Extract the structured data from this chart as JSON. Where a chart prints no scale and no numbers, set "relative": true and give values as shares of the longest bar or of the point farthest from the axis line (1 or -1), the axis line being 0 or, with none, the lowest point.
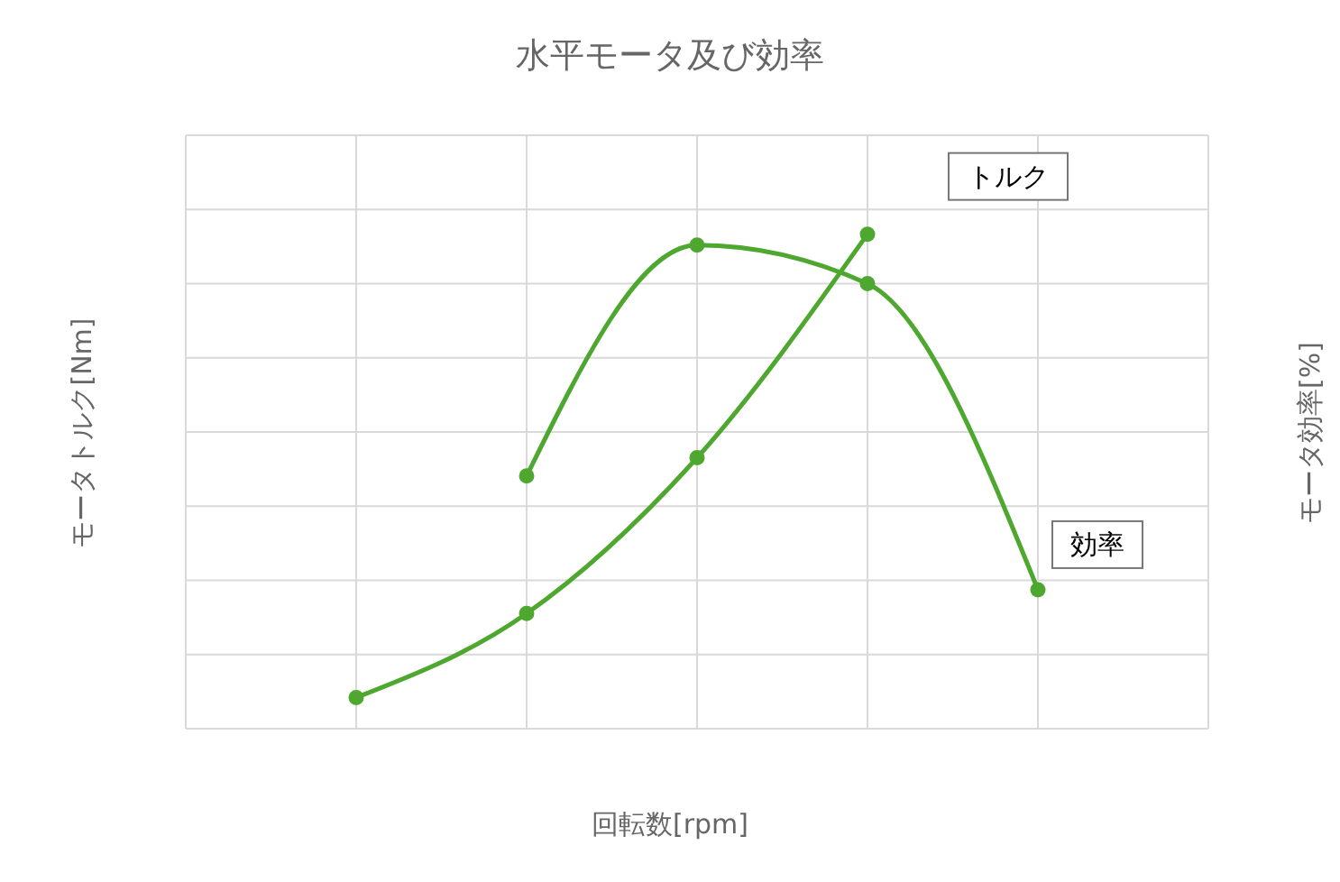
{
  "chart_data": {
    "type": "line",
    "title": "水平モータ及び効率",
    "xlabel": "回転数[rpm]",
    "ylabel": "モータトルク[Nm]",
    "y2label": "モータ効率[%]",
    "categories": [
      null,
      null,
      null,
      null,
      null,
      null,
      null
    ],
    "relative": true,
    "grid": true,
    "marker": "circle",
    "series": [
      {
        "name": "トルク",
        "color": "#4ea72e",
        "values": [
          null,
          0.063,
          0.233,
          0.548,
          1,
          null,
          null
        ]
      },
      {
        "name": "効率",
        "color": "#4ea72e",
        "values": [
          null,
          null,
          0.511,
          0.978,
          0.9,
          0.281,
          null
        ]
      }
    ]
  }
}
